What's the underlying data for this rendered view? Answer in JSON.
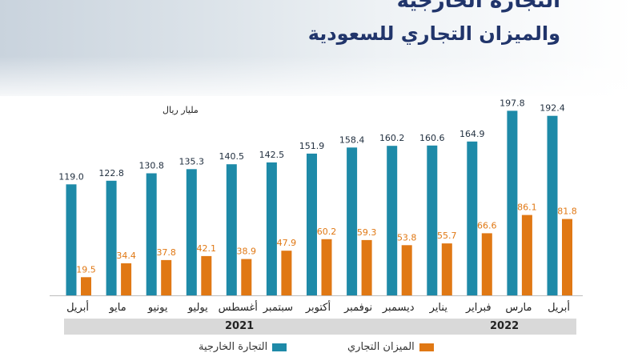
{
  "header": {
    "title_line1": "التجارة الخارجية",
    "title_line2": "والميزان التجاري للسعودية"
  },
  "colors": {
    "foreign_trade": "#1e8aa8",
    "trade_balance": "#e07814",
    "title": "#21356b"
  },
  "chart_data": {
    "type": "bar",
    "unit_label": "مليار ريال",
    "categories": [
      "أبريل",
      "مايو",
      "يونيو",
      "يوليو",
      "أغسطس",
      "سبتمبر",
      "أكتوبر",
      "نوفمبر",
      "ديسمبر",
      "يناير",
      "فبراير",
      "مارس",
      "أبريل"
    ],
    "series": [
      {
        "name": "التجارة الخارجية",
        "values": [
          119.0,
          122.8,
          130.8,
          135.3,
          140.5,
          142.5,
          151.9,
          158.4,
          160.2,
          160.6,
          164.9,
          197.8,
          192.4
        ]
      },
      {
        "name": "الميزان التجاري",
        "values": [
          19.5,
          34.4,
          37.8,
          42.1,
          38.9,
          47.9,
          60.2,
          59.3,
          53.8,
          55.7,
          66.6,
          86.1,
          81.8
        ]
      }
    ],
    "year_groups": [
      {
        "label": "2021",
        "count": 9
      },
      {
        "label": "2022",
        "count": 4
      }
    ],
    "ylim": [
      0,
      205
    ],
    "legend_position": "bottom"
  }
}
